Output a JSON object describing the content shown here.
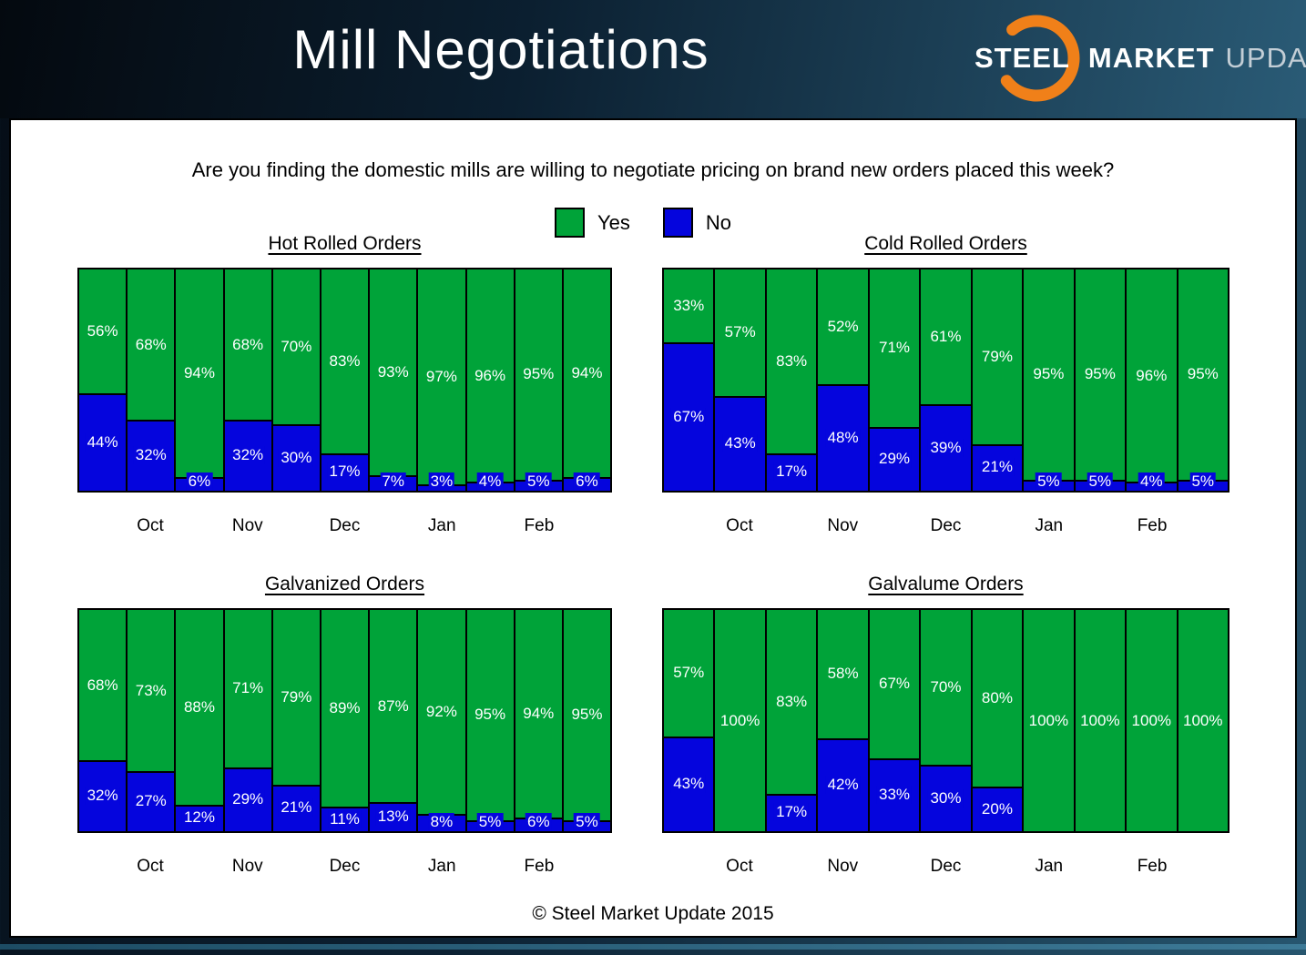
{
  "header": {
    "title": "Mill Negotiations",
    "logo": {
      "steel": "STEEL",
      "market": "MARKET",
      "update": "UPDATE"
    }
  },
  "question": "Are you finding the domestic mills are willing to negotiate pricing on brand new orders placed this week?",
  "legend": {
    "yes_label": "Yes",
    "no_label": "No",
    "yes_color": "#00a339",
    "no_color": "#0505dd"
  },
  "months": [
    "Oct",
    "Nov",
    "Dec",
    "Jan",
    "Feb"
  ],
  "month_tick_indices": [
    1,
    3,
    5,
    7,
    9
  ],
  "footer": "© Steel Market Update 2015",
  "chart_data": [
    {
      "type": "bar",
      "stacked": true,
      "title": "Hot Rolled Orders",
      "ylim": [
        0,
        100
      ],
      "series": [
        {
          "name": "Yes",
          "values": [
            56,
            68,
            94,
            68,
            70,
            83,
            93,
            97,
            96,
            95,
            94
          ]
        },
        {
          "name": "No",
          "values": [
            44,
            32,
            6,
            32,
            30,
            17,
            7,
            3,
            4,
            5,
            6
          ]
        }
      ]
    },
    {
      "type": "bar",
      "stacked": true,
      "title": "Cold Rolled Orders",
      "ylim": [
        0,
        100
      ],
      "series": [
        {
          "name": "Yes",
          "values": [
            33,
            57,
            83,
            52,
            71,
            61,
            79,
            95,
            95,
            96,
            95
          ]
        },
        {
          "name": "No",
          "values": [
            67,
            43,
            17,
            48,
            29,
            39,
            21,
            5,
            5,
            4,
            5
          ]
        }
      ]
    },
    {
      "type": "bar",
      "stacked": true,
      "title": "Galvanized Orders",
      "ylim": [
        0,
        100
      ],
      "series": [
        {
          "name": "Yes",
          "values": [
            68,
            73,
            88,
            71,
            79,
            89,
            87,
            92,
            95,
            94,
            95
          ]
        },
        {
          "name": "No",
          "values": [
            32,
            27,
            12,
            29,
            21,
            11,
            13,
            8,
            5,
            6,
            5
          ]
        }
      ]
    },
    {
      "type": "bar",
      "stacked": true,
      "title": "Galvalume Orders",
      "ylim": [
        0,
        100
      ],
      "series": [
        {
          "name": "Yes",
          "values": [
            57,
            100,
            83,
            58,
            67,
            70,
            80,
            100,
            100,
            100,
            100
          ]
        },
        {
          "name": "No",
          "values": [
            43,
            0,
            17,
            42,
            33,
            30,
            20,
            0,
            0,
            0,
            0
          ]
        }
      ]
    }
  ]
}
